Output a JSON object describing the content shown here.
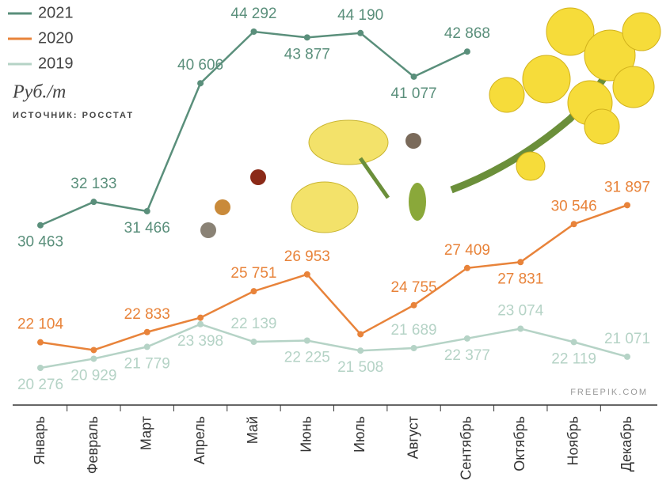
{
  "chart_data": {
    "type": "line",
    "unit": "Руб./т",
    "source": "ИСТОЧНИК: РОССТАТ",
    "watermark": "FREEPIK.COM",
    "categories": [
      "Январь",
      "Февраль",
      "Март",
      "Апрель",
      "Май",
      "Июнь",
      "Июль",
      "Август",
      "Сентябрь",
      "Октябрь",
      "Ноябрь",
      "Декабрь"
    ],
    "series": [
      {
        "name": "2021",
        "color": "#5a8f7b",
        "values": [
          30463,
          32133,
          31466,
          40606,
          44292,
          43877,
          44190,
          41077,
          42868,
          null,
          null,
          null
        ],
        "value_labels": [
          "30 463",
          "32 133",
          "31 466",
          "40 606",
          "44 292",
          "43 877",
          "44 190",
          "41 077",
          "42 868",
          null,
          null,
          null
        ]
      },
      {
        "name": "2020",
        "color": "#e8833a",
        "values": [
          22104,
          21550,
          22833,
          23860,
          25751,
          26953,
          22680,
          24755,
          27409,
          27831,
          30546,
          31897
        ],
        "value_labels": [
          "22 104",
          null,
          "22 833",
          null,
          "25 751",
          "26 953",
          null,
          "24 755",
          "27 409",
          "27 831",
          "30 546",
          "31 897"
        ]
      },
      {
        "name": "2019",
        "color": "#b5d3c6",
        "values": [
          20276,
          20929,
          21779,
          23398,
          22139,
          22225,
          21508,
          21689,
          22377,
          23074,
          22119,
          21071
        ],
        "value_labels": [
          "20 276",
          "20 929",
          "21 779",
          "23 398",
          "22 139",
          "22 225",
          "21 508",
          "21 689",
          "22 377",
          "23 074",
          "22 119",
          "21 071"
        ]
      }
    ],
    "legend": "upper left"
  }
}
